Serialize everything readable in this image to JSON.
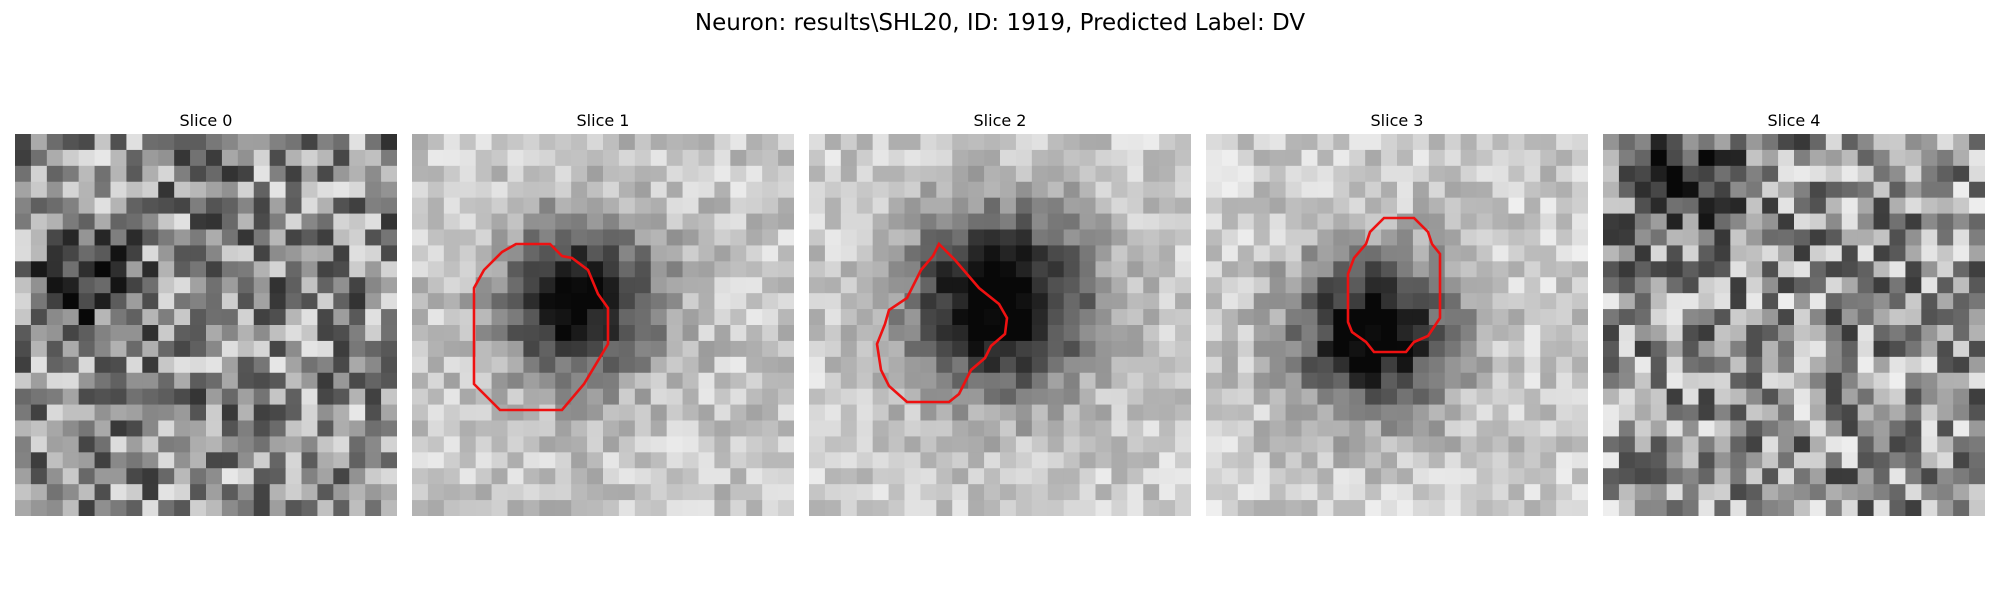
{
  "figure": {
    "title": "Neuron: results\\SHL20, ID: 1919, Predicted Label: DV"
  },
  "panels": [
    {
      "title": "Slice 0",
      "has_contour": false
    },
    {
      "title": "Slice 1",
      "has_contour": true
    },
    {
      "title": "Slice 2",
      "has_contour": true
    },
    {
      "title": "Slice 3",
      "has_contour": true
    },
    {
      "title": "Slice 4",
      "has_contour": false
    }
  ],
  "colors": {
    "contour": "#ee1111",
    "colormap": "grayscale"
  }
}
